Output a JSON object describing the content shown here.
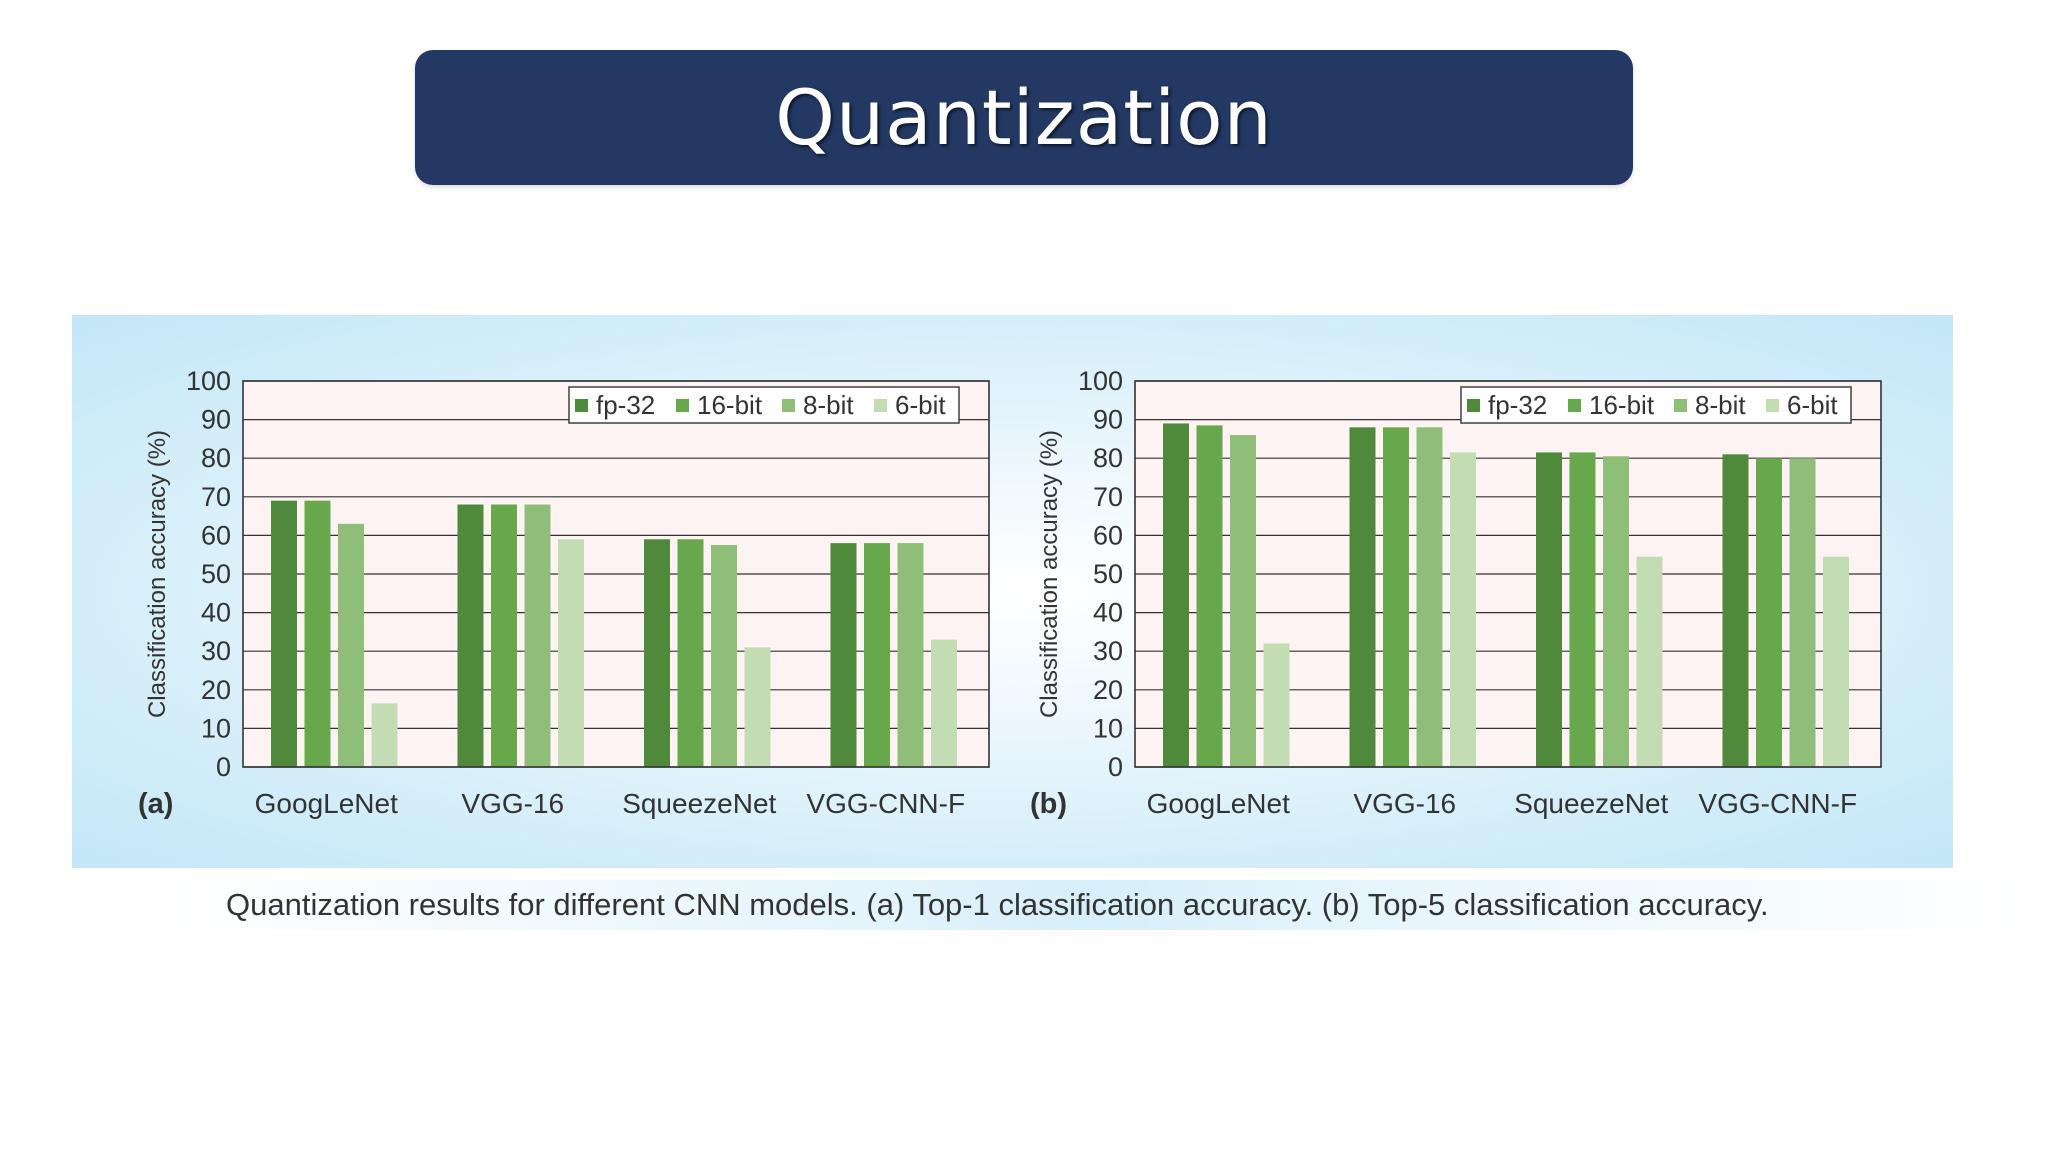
{
  "slide": {
    "title": "Quantization",
    "caption": "Quantization results for different CNN models. (a) Top-1 classification accuracy. (b) Top-5 classification accuracy."
  },
  "colors": {
    "title_bg": "#233863",
    "plot_bg": "#fdf3f3",
    "fp32": "#4f8a3c",
    "bit16": "#67a84c",
    "bit8": "#8fbe78",
    "bit6": "#c3dcb3"
  },
  "chart_data": [
    {
      "type": "bar",
      "panel_label": "(a)",
      "title": "",
      "xlabel": "",
      "ylabel": "Classification accuracy (%)",
      "ylim": [
        0,
        100
      ],
      "yticks": [
        0,
        10,
        20,
        30,
        40,
        50,
        60,
        70,
        80,
        90,
        100
      ],
      "grid": true,
      "legend_position": "top-right",
      "categories": [
        "GoogLeNet",
        "VGG-16",
        "SqueezeNet",
        "VGG-CNN-F"
      ],
      "series": [
        {
          "name": "fp-32",
          "values": [
            69,
            68,
            59,
            58
          ]
        },
        {
          "name": "16-bit",
          "values": [
            69,
            68,
            59,
            58
          ]
        },
        {
          "name": "8-bit",
          "values": [
            63,
            68,
            57.5,
            58
          ]
        },
        {
          "name": "6-bit",
          "values": [
            16.5,
            59,
            31,
            33
          ]
        }
      ]
    },
    {
      "type": "bar",
      "panel_label": "(b)",
      "title": "",
      "xlabel": "",
      "ylabel": "Classification accuracy (%)",
      "ylim": [
        0,
        100
      ],
      "yticks": [
        0,
        10,
        20,
        30,
        40,
        50,
        60,
        70,
        80,
        90,
        100
      ],
      "grid": true,
      "legend_position": "top-right",
      "categories": [
        "GoogLeNet",
        "VGG-16",
        "SqueezeNet",
        "VGG-CNN-F"
      ],
      "series": [
        {
          "name": "fp-32",
          "values": [
            89,
            88,
            81.5,
            81
          ]
        },
        {
          "name": "16-bit",
          "values": [
            88.5,
            88,
            81.5,
            80
          ]
        },
        {
          "name": "8-bit",
          "values": [
            86,
            88,
            80.5,
            80
          ]
        },
        {
          "name": "6-bit",
          "values": [
            32,
            81.5,
            54.5,
            54.5
          ]
        }
      ]
    }
  ]
}
